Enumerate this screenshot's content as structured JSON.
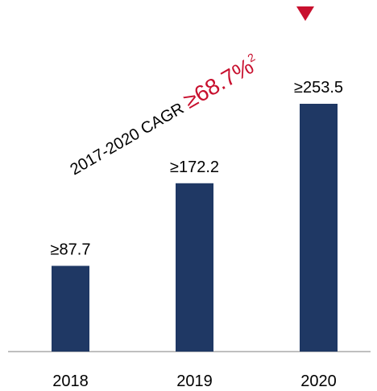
{
  "chart_data": {
    "type": "bar",
    "categories": [
      "2018",
      "2019",
      "2020"
    ],
    "values": [
      87.7,
      172.2,
      253.5
    ],
    "value_labels": [
      "≥87.7",
      "≥172.2",
      "≥253.5"
    ],
    "color": "#1f3864",
    "ylim": [
      0,
      300
    ],
    "annotation": {
      "text": "2017-2020 CAGR",
      "highlight": "≥68.7%",
      "footnote": "2",
      "color": "#c8102e"
    }
  }
}
